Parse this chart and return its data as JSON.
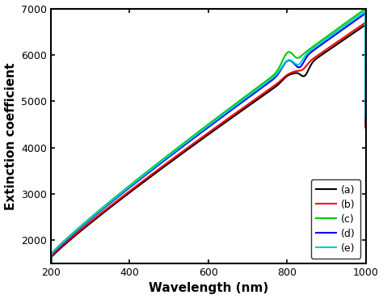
{
  "xlabel": "Wavelength (nm)",
  "ylabel": "Extinction coefficient",
  "xlim": [
    200,
    1000
  ],
  "ylim": [
    1500,
    7000
  ],
  "yticks": [
    2000,
    3000,
    4000,
    5000,
    6000,
    7000
  ],
  "xticks": [
    200,
    400,
    600,
    800,
    1000
  ],
  "legend_labels": [
    "(a)",
    "(b)",
    "(c)",
    "(d)",
    "(e)"
  ],
  "colors": [
    "#000000",
    "#ff0000",
    "#00cc00",
    "#0000ff",
    "#00cccc"
  ],
  "linewidth": 1.5,
  "background_color": "#ffffff"
}
